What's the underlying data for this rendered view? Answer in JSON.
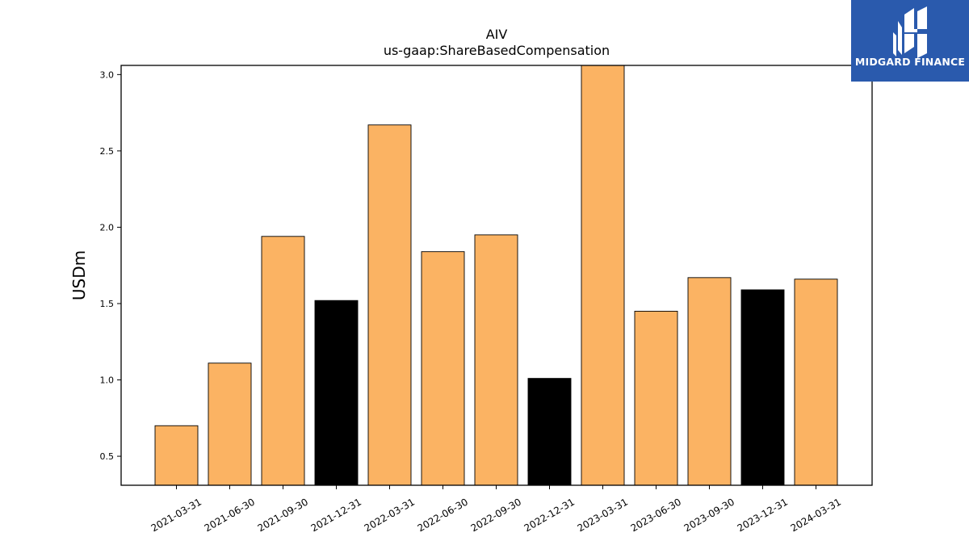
{
  "brand": {
    "name": "MIDGARD FINANCE",
    "logo_icon": "midgard-logo-icon",
    "bg_color": "#2a5aad"
  },
  "chart_data": {
    "type": "bar",
    "title": "AIV",
    "subtitle": "us-gaap:ShareBasedCompensation",
    "xlabel": "",
    "ylabel": "USDm",
    "categories": [
      "2021-03-31",
      "2021-06-30",
      "2021-09-30",
      "2021-12-31",
      "2022-03-31",
      "2022-06-30",
      "2022-09-30",
      "2022-12-31",
      "2023-03-31",
      "2023-06-30",
      "2023-09-30",
      "2023-12-31",
      "2024-03-31"
    ],
    "values": [
      0.7,
      1.11,
      1.94,
      1.52,
      2.67,
      1.84,
      1.95,
      1.01,
      3.06,
      1.45,
      1.67,
      1.59,
      1.66
    ],
    "bar_colors": [
      "#fbb363",
      "#fbb363",
      "#fbb363",
      "#000000",
      "#fbb363",
      "#fbb363",
      "#fbb363",
      "#000000",
      "#fbb363",
      "#fbb363",
      "#fbb363",
      "#000000",
      "#fbb363"
    ],
    "yticks": [
      "0.5",
      "1.0",
      "1.5",
      "2.0",
      "2.5",
      "3.0"
    ],
    "ylim": [
      0.31,
      3.06
    ],
    "grid": false
  }
}
